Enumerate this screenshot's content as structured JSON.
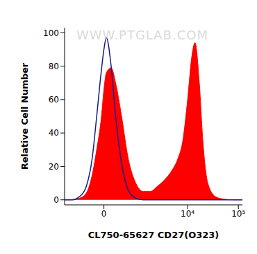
{
  "chart_data": {
    "type": "area",
    "xlabel": "CL750-65627 CD27(O323)",
    "ylabel": "Relative Cell Number",
    "annotations": [
      "WWW.PTGLAB.COM"
    ],
    "log": "x",
    "x": [
      -1300,
      -900,
      -600,
      -400,
      -250,
      -150,
      -50,
      0,
      50,
      150,
      250,
      400,
      600,
      900,
      1300,
      1800,
      2500,
      3500,
      5000,
      6500,
      8000,
      10000,
      12000,
      14000,
      17000,
      20000,
      25000,
      35000,
      50000,
      80000,
      120000
    ],
    "series": [
      {
        "type": "area",
        "color": "#ff0000",
        "values": [
          0,
          0,
          1,
          4,
          15,
          30,
          50,
          66,
          76,
          79,
          70,
          50,
          25,
          10,
          5,
          5,
          8,
          12,
          18,
          25,
          35,
          60,
          85,
          94,
          70,
          35,
          10,
          2,
          0.5,
          0,
          0
        ]
      },
      {
        "type": "line",
        "color": "#1a1a8c",
        "values": [
          0,
          0,
          2,
          8,
          25,
          50,
          78,
          90,
          97,
          80,
          50,
          22,
          6,
          1,
          0,
          0,
          0,
          0,
          0,
          0,
          0,
          0,
          0,
          0,
          0,
          0,
          0,
          0,
          0,
          0,
          0
        ]
      }
    ],
    "xlim": [
      -1300,
      120000
    ],
    "xticks": [
      0,
      {
        "value": 10000,
        "label": "10⁴"
      },
      {
        "value": 100000,
        "label": "10⁵"
      }
    ],
    "ylim": [
      -3,
      103
    ],
    "yticks": [
      0,
      20,
      40,
      60,
      80,
      100
    ]
  }
}
